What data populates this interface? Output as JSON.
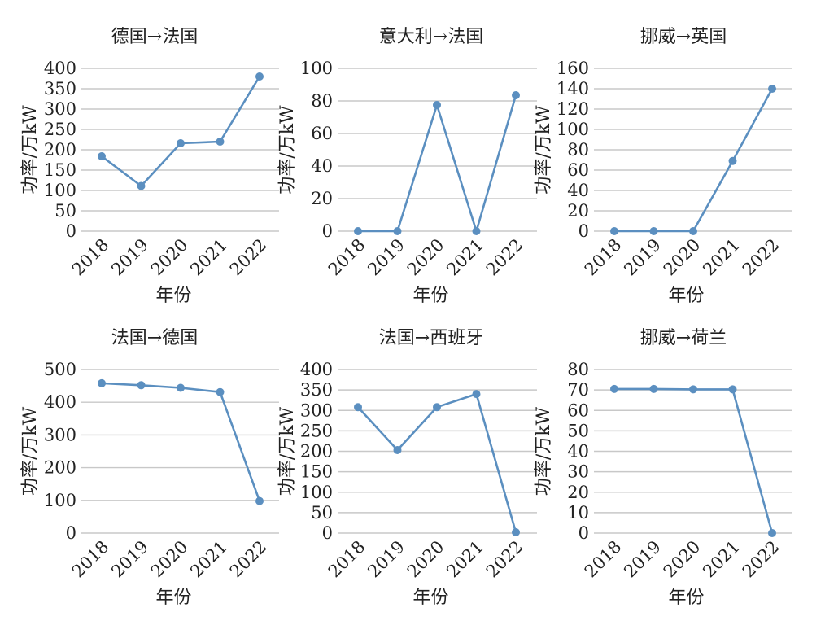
{
  "style": {
    "line_color": "#5b8fc0",
    "grid_color": "#c8c8c8",
    "text_color": "#222222"
  },
  "chart_data": [
    {
      "type": "line",
      "title": "德国→法国",
      "xlabel": "年份",
      "ylabel": "功率/万kW",
      "categories": [
        "2018",
        "2019",
        "2020",
        "2021",
        "2022"
      ],
      "values": [
        184,
        111,
        216,
        220,
        380
      ],
      "ylim": [
        0,
        400
      ],
      "yticks": [
        0,
        50,
        100,
        150,
        200,
        250,
        300,
        350,
        400
      ],
      "grid": true
    },
    {
      "type": "line",
      "title": "意大利→法国",
      "xlabel": "年份",
      "ylabel": "功率/万kW",
      "categories": [
        "2018",
        "2019",
        "2020",
        "2021",
        "2022"
      ],
      "values": [
        0,
        0,
        77.5,
        0,
        83.5
      ],
      "ylim": [
        0,
        100
      ],
      "yticks": [
        0,
        20,
        40,
        60,
        80,
        100
      ],
      "grid": true
    },
    {
      "type": "line",
      "title": "挪威→英国",
      "xlabel": "年份",
      "ylabel": "功率/万kW",
      "categories": [
        "2018",
        "2019",
        "2020",
        "2021",
        "2022"
      ],
      "values": [
        0,
        0,
        0,
        69,
        140
      ],
      "ylim": [
        0,
        160
      ],
      "yticks": [
        0,
        20,
        40,
        60,
        80,
        100,
        120,
        140,
        160
      ],
      "grid": true
    },
    {
      "type": "line",
      "title": "法国→德国",
      "xlabel": "年份",
      "ylabel": "功率/万kW",
      "categories": [
        "2018",
        "2019",
        "2020",
        "2021",
        "2022"
      ],
      "values": [
        458,
        452,
        444,
        431,
        98
      ],
      "ylim": [
        0,
        500
      ],
      "yticks": [
        0,
        100,
        200,
        300,
        400,
        500
      ],
      "grid": true
    },
    {
      "type": "line",
      "title": "法国→西班牙",
      "xlabel": "年份",
      "ylabel": "功率/万kW",
      "categories": [
        "2018",
        "2019",
        "2020",
        "2021",
        "2022"
      ],
      "values": [
        308,
        203,
        308,
        340,
        2
      ],
      "ylim": [
        0,
        400
      ],
      "yticks": [
        0,
        50,
        100,
        150,
        200,
        250,
        300,
        350,
        400
      ],
      "grid": true
    },
    {
      "type": "line",
      "title": "挪威→荷兰",
      "xlabel": "年份",
      "ylabel": "功率/万kW",
      "categories": [
        "2018",
        "2019",
        "2020",
        "2021",
        "2022"
      ],
      "values": [
        70.5,
        70.5,
        70.3,
        70.3,
        0
      ],
      "ylim": [
        0,
        80
      ],
      "yticks": [
        0,
        10,
        20,
        30,
        40,
        50,
        60,
        70,
        80
      ],
      "grid": true
    }
  ]
}
